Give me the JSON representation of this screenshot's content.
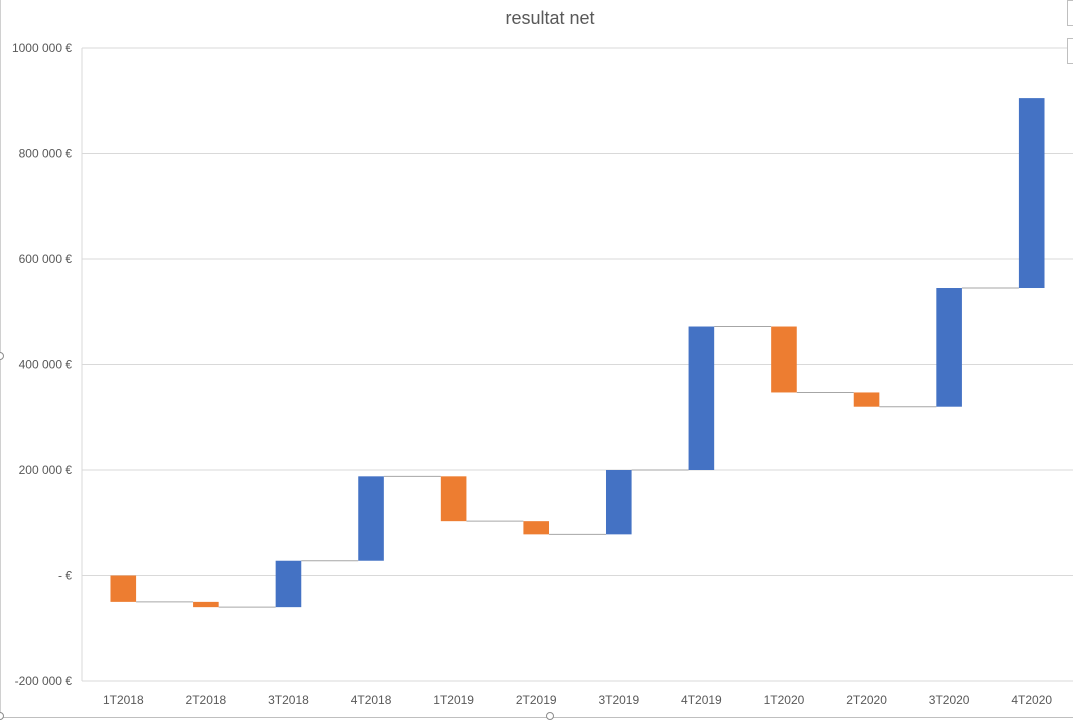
{
  "chart_data": {
    "type": "bar",
    "subtype": "waterfall",
    "title": "resultat net",
    "xlabel": "",
    "ylabel": "",
    "categories": [
      "1T2018",
      "2T2018",
      "3T2018",
      "4T2018",
      "1T2019",
      "2T2019",
      "3T2019",
      "4T2019",
      "1T2020",
      "2T2020",
      "3T2020",
      "4T2020"
    ],
    "values": [
      -50000,
      -10000,
      88000,
      160000,
      -85000,
      -25000,
      122000,
      272000,
      -125000,
      -27000,
      225000,
      360000
    ],
    "running_totals": [
      -50000,
      -60000,
      28000,
      188000,
      103000,
      78000,
      200000,
      472000,
      347000,
      320000,
      545000,
      905000
    ],
    "ylim": [
      -200000,
      1000000
    ],
    "yticks": [
      -200000,
      0,
      200000,
      400000,
      600000,
      800000,
      1000000
    ],
    "ytick_labels": [
      "-200 000 €",
      "-  €",
      "200 000 €",
      "400 000 €",
      "600 000 €",
      "800 000 €",
      "1000 000 €"
    ],
    "grid": true,
    "legend": "none",
    "colors": {
      "increase": "#4472c4",
      "decrease": "#ed7d31",
      "connector": "#a6a6a6",
      "grid": "#d9d9d9"
    }
  }
}
